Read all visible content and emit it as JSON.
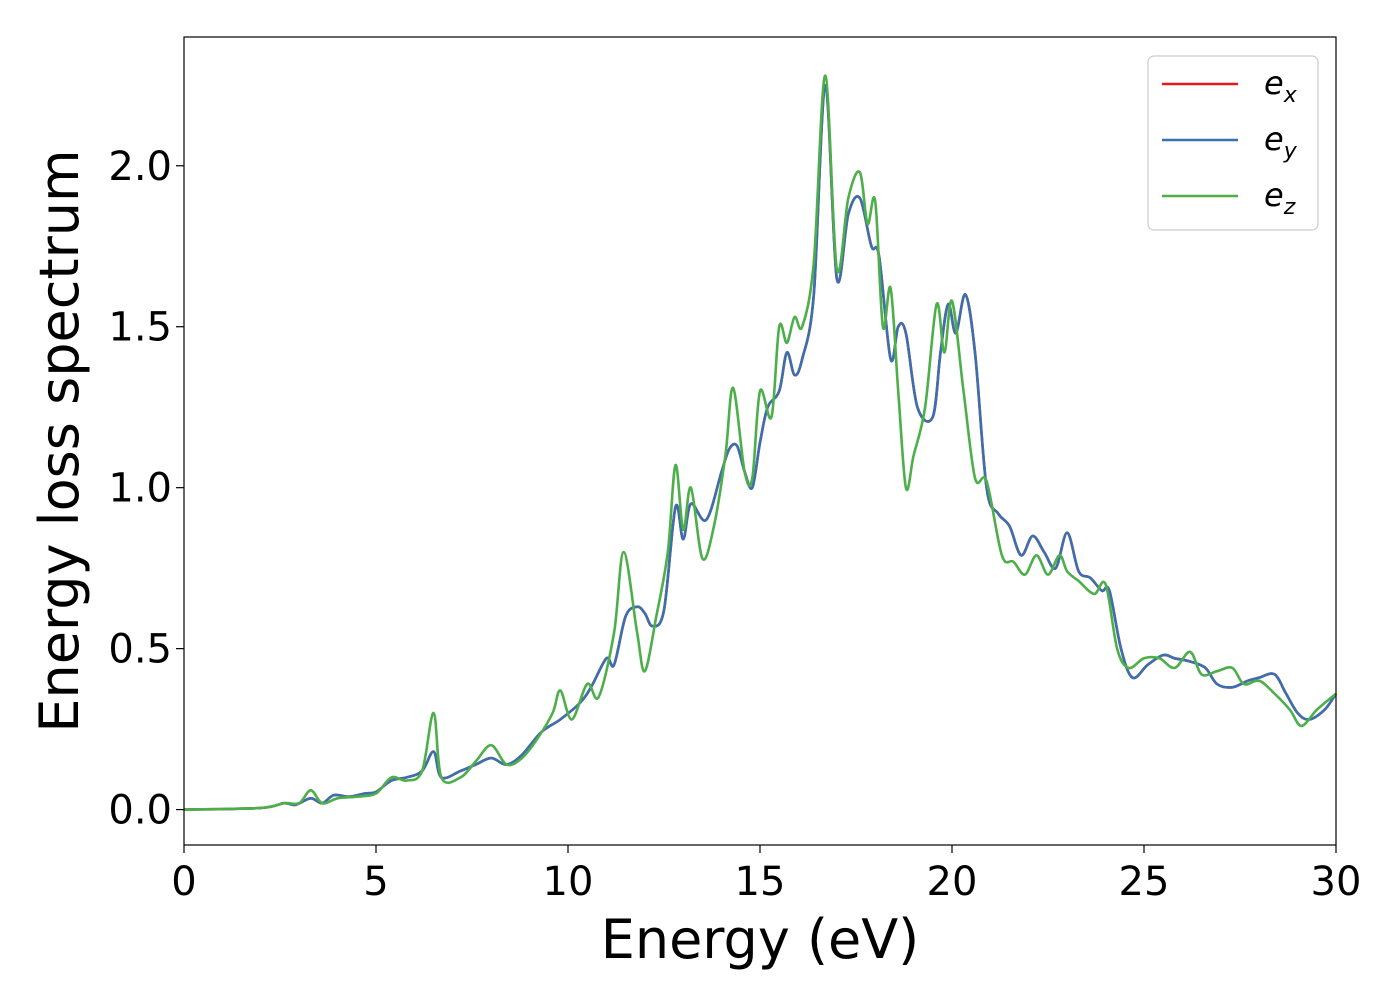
{
  "chart_data": {
    "type": "line",
    "title": "",
    "xlabel": "Energy (eV)",
    "ylabel": "Energy loss spectrum",
    "xlim": [
      0,
      30
    ],
    "ylim": [
      -0.11,
      2.4
    ],
    "xticks": [
      0,
      5,
      10,
      15,
      20,
      25,
      30
    ],
    "xtick_labels": [
      "0",
      "5",
      "10",
      "15",
      "20",
      "25",
      "30"
    ],
    "yticks": [
      0.0,
      0.5,
      1.0,
      1.5,
      2.0
    ],
    "ytick_labels": [
      "0.0",
      "0.5",
      "1.0",
      "1.5",
      "2.0"
    ],
    "grid": false,
    "legend_position": "top-right",
    "series": [
      {
        "name": "e",
        "subscript": "x",
        "color": "#e41a1c",
        "x": [
          0,
          2,
          2.6,
          2.9,
          3.3,
          3.6,
          3.9,
          4.3,
          4.7,
          5.0,
          5.4,
          5.8,
          6.2,
          6.5,
          6.7,
          7.2,
          7.6,
          8.0,
          8.4,
          8.8,
          9.3,
          9.8,
          10.3,
          10.6,
          11.0,
          11.2,
          11.5,
          11.8,
          12.0,
          12.2,
          12.5,
          12.8,
          13.0,
          13.2,
          13.6,
          14.0,
          14.2,
          14.4,
          14.6,
          14.8,
          15.0,
          15.2,
          15.5,
          15.7,
          15.9,
          16.1,
          16.4,
          16.7,
          17.0,
          17.3,
          17.6,
          17.9,
          18.1,
          18.4,
          18.6,
          18.8,
          19.1,
          19.5,
          19.7,
          19.9,
          20.1,
          20.35,
          20.6,
          20.9,
          21.2,
          21.5,
          21.8,
          22.1,
          22.4,
          22.7,
          23.0,
          23.3,
          23.6,
          23.9,
          24.1,
          24.4,
          24.7,
          25.1,
          25.5,
          25.8,
          26.2,
          26.6,
          26.9,
          27.3,
          27.7,
          28.0,
          28.4,
          28.7,
          29.0,
          29.3,
          29.7,
          30.0
        ],
        "y": [
          0.0,
          0.005,
          0.02,
          0.015,
          0.035,
          0.02,
          0.045,
          0.04,
          0.05,
          0.055,
          0.09,
          0.1,
          0.12,
          0.18,
          0.1,
          0.12,
          0.14,
          0.16,
          0.14,
          0.17,
          0.24,
          0.28,
          0.33,
          0.38,
          0.47,
          0.45,
          0.6,
          0.63,
          0.61,
          0.57,
          0.62,
          0.94,
          0.84,
          0.95,
          0.9,
          1.05,
          1.12,
          1.13,
          1.05,
          1.0,
          1.14,
          1.25,
          1.3,
          1.42,
          1.35,
          1.4,
          1.6,
          2.25,
          1.65,
          1.85,
          1.9,
          1.75,
          1.72,
          1.4,
          1.5,
          1.48,
          1.25,
          1.22,
          1.42,
          1.57,
          1.48,
          1.6,
          1.42,
          1.0,
          0.92,
          0.88,
          0.79,
          0.85,
          0.8,
          0.75,
          0.86,
          0.74,
          0.72,
          0.68,
          0.68,
          0.5,
          0.41,
          0.45,
          0.48,
          0.47,
          0.46,
          0.44,
          0.39,
          0.38,
          0.4,
          0.41,
          0.42,
          0.36,
          0.3,
          0.28,
          0.31,
          0.36
        ]
      },
      {
        "name": "e",
        "subscript": "y",
        "color": "#3a70b0",
        "x": [
          0,
          2,
          2.6,
          2.9,
          3.3,
          3.6,
          3.9,
          4.3,
          4.7,
          5.0,
          5.4,
          5.8,
          6.2,
          6.5,
          6.7,
          7.2,
          7.6,
          8.0,
          8.4,
          8.8,
          9.3,
          9.8,
          10.3,
          10.6,
          11.0,
          11.2,
          11.5,
          11.8,
          12.0,
          12.2,
          12.5,
          12.8,
          13.0,
          13.2,
          13.6,
          14.0,
          14.2,
          14.4,
          14.6,
          14.8,
          15.0,
          15.2,
          15.5,
          15.7,
          15.9,
          16.1,
          16.4,
          16.7,
          17.0,
          17.3,
          17.6,
          17.9,
          18.1,
          18.4,
          18.6,
          18.8,
          19.1,
          19.5,
          19.7,
          19.9,
          20.1,
          20.35,
          20.6,
          20.9,
          21.2,
          21.5,
          21.8,
          22.1,
          22.4,
          22.7,
          23.0,
          23.3,
          23.6,
          23.9,
          24.1,
          24.4,
          24.7,
          25.1,
          25.5,
          25.8,
          26.2,
          26.6,
          26.9,
          27.3,
          27.7,
          28.0,
          28.4,
          28.7,
          29.0,
          29.3,
          29.7,
          30.0
        ],
        "y": [
          0.0,
          0.005,
          0.02,
          0.015,
          0.035,
          0.02,
          0.045,
          0.04,
          0.05,
          0.055,
          0.09,
          0.1,
          0.12,
          0.18,
          0.1,
          0.12,
          0.14,
          0.16,
          0.14,
          0.17,
          0.24,
          0.28,
          0.33,
          0.38,
          0.47,
          0.45,
          0.6,
          0.63,
          0.61,
          0.57,
          0.62,
          0.94,
          0.84,
          0.95,
          0.9,
          1.05,
          1.12,
          1.13,
          1.05,
          1.0,
          1.14,
          1.25,
          1.3,
          1.42,
          1.35,
          1.4,
          1.6,
          2.25,
          1.65,
          1.85,
          1.9,
          1.75,
          1.72,
          1.4,
          1.5,
          1.48,
          1.25,
          1.22,
          1.42,
          1.57,
          1.48,
          1.6,
          1.42,
          1.0,
          0.92,
          0.88,
          0.79,
          0.85,
          0.8,
          0.75,
          0.86,
          0.74,
          0.72,
          0.68,
          0.68,
          0.5,
          0.41,
          0.45,
          0.48,
          0.47,
          0.46,
          0.44,
          0.39,
          0.38,
          0.4,
          0.41,
          0.42,
          0.36,
          0.3,
          0.28,
          0.31,
          0.36
        ]
      },
      {
        "name": "e",
        "subscript": "z",
        "color": "#4daf4a",
        "x": [
          0,
          2,
          2.6,
          3.0,
          3.3,
          3.6,
          4.0,
          4.5,
          5.0,
          5.4,
          5.8,
          6.2,
          6.5,
          6.7,
          7.2,
          7.6,
          8.0,
          8.4,
          8.8,
          9.2,
          9.6,
          9.8,
          10.1,
          10.5,
          10.8,
          11.2,
          11.45,
          11.8,
          12.0,
          12.3,
          12.6,
          12.8,
          13.0,
          13.2,
          13.5,
          13.8,
          14.1,
          14.3,
          14.6,
          14.8,
          15.0,
          15.3,
          15.5,
          15.7,
          15.9,
          16.1,
          16.4,
          16.7,
          17.0,
          17.3,
          17.6,
          17.8,
          18.0,
          18.2,
          18.4,
          18.6,
          18.8,
          19.0,
          19.3,
          19.6,
          19.8,
          20.0,
          20.3,
          20.6,
          20.9,
          21.3,
          21.6,
          21.9,
          22.2,
          22.5,
          22.8,
          23.0,
          23.3,
          23.7,
          24.0,
          24.3,
          24.6,
          25.0,
          25.4,
          25.8,
          26.2,
          26.5,
          26.9,
          27.3,
          27.6,
          28.0,
          28.4,
          28.8,
          29.1,
          29.5,
          30.0
        ],
        "y": [
          0.0,
          0.005,
          0.02,
          0.02,
          0.06,
          0.02,
          0.035,
          0.04,
          0.05,
          0.1,
          0.09,
          0.12,
          0.3,
          0.1,
          0.1,
          0.15,
          0.2,
          0.14,
          0.16,
          0.22,
          0.3,
          0.37,
          0.28,
          0.39,
          0.35,
          0.55,
          0.8,
          0.55,
          0.43,
          0.6,
          0.8,
          1.07,
          0.87,
          1.0,
          0.78,
          0.88,
          1.1,
          1.31,
          1.05,
          1.03,
          1.3,
          1.22,
          1.5,
          1.45,
          1.53,
          1.5,
          1.7,
          2.28,
          1.68,
          1.9,
          1.98,
          1.82,
          1.89,
          1.5,
          1.62,
          1.3,
          1.0,
          1.1,
          1.25,
          1.57,
          1.42,
          1.58,
          1.3,
          1.03,
          1.02,
          0.79,
          0.77,
          0.73,
          0.79,
          0.73,
          0.79,
          0.74,
          0.71,
          0.67,
          0.7,
          0.5,
          0.44,
          0.47,
          0.47,
          0.44,
          0.49,
          0.42,
          0.43,
          0.44,
          0.39,
          0.4,
          0.36,
          0.31,
          0.26,
          0.31,
          0.36
        ]
      }
    ]
  }
}
